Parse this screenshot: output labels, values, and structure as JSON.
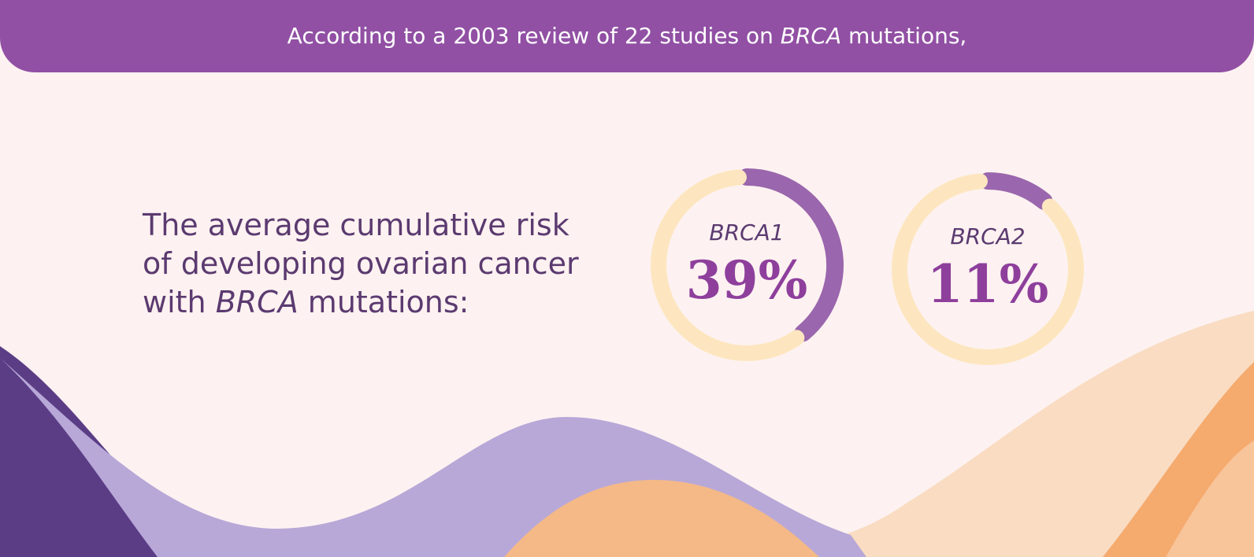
{
  "header": {
    "parts": [
      "According to a 2003 review of 22 studies on ",
      "BRCA",
      " mutations,"
    ]
  },
  "intro": {
    "lines": [
      [
        "The average cumulative risk"
      ],
      [
        "of developing ovarian cancer"
      ],
      [
        "with ",
        "BRCA",
        " mutations:"
      ]
    ]
  },
  "chart_data": [
    {
      "type": "donut",
      "label": "BRCA1",
      "values": [
        39,
        61
      ],
      "value_labels": [
        "39%",
        null
      ],
      "colors": [
        "#9a66ad",
        "#fde6bf"
      ]
    },
    {
      "type": "donut",
      "label": "BRCA2",
      "values": [
        11,
        89
      ],
      "value_labels": [
        "11%",
        null
      ],
      "colors": [
        "#9a66ad",
        "#fde6bf"
      ]
    }
  ]
}
